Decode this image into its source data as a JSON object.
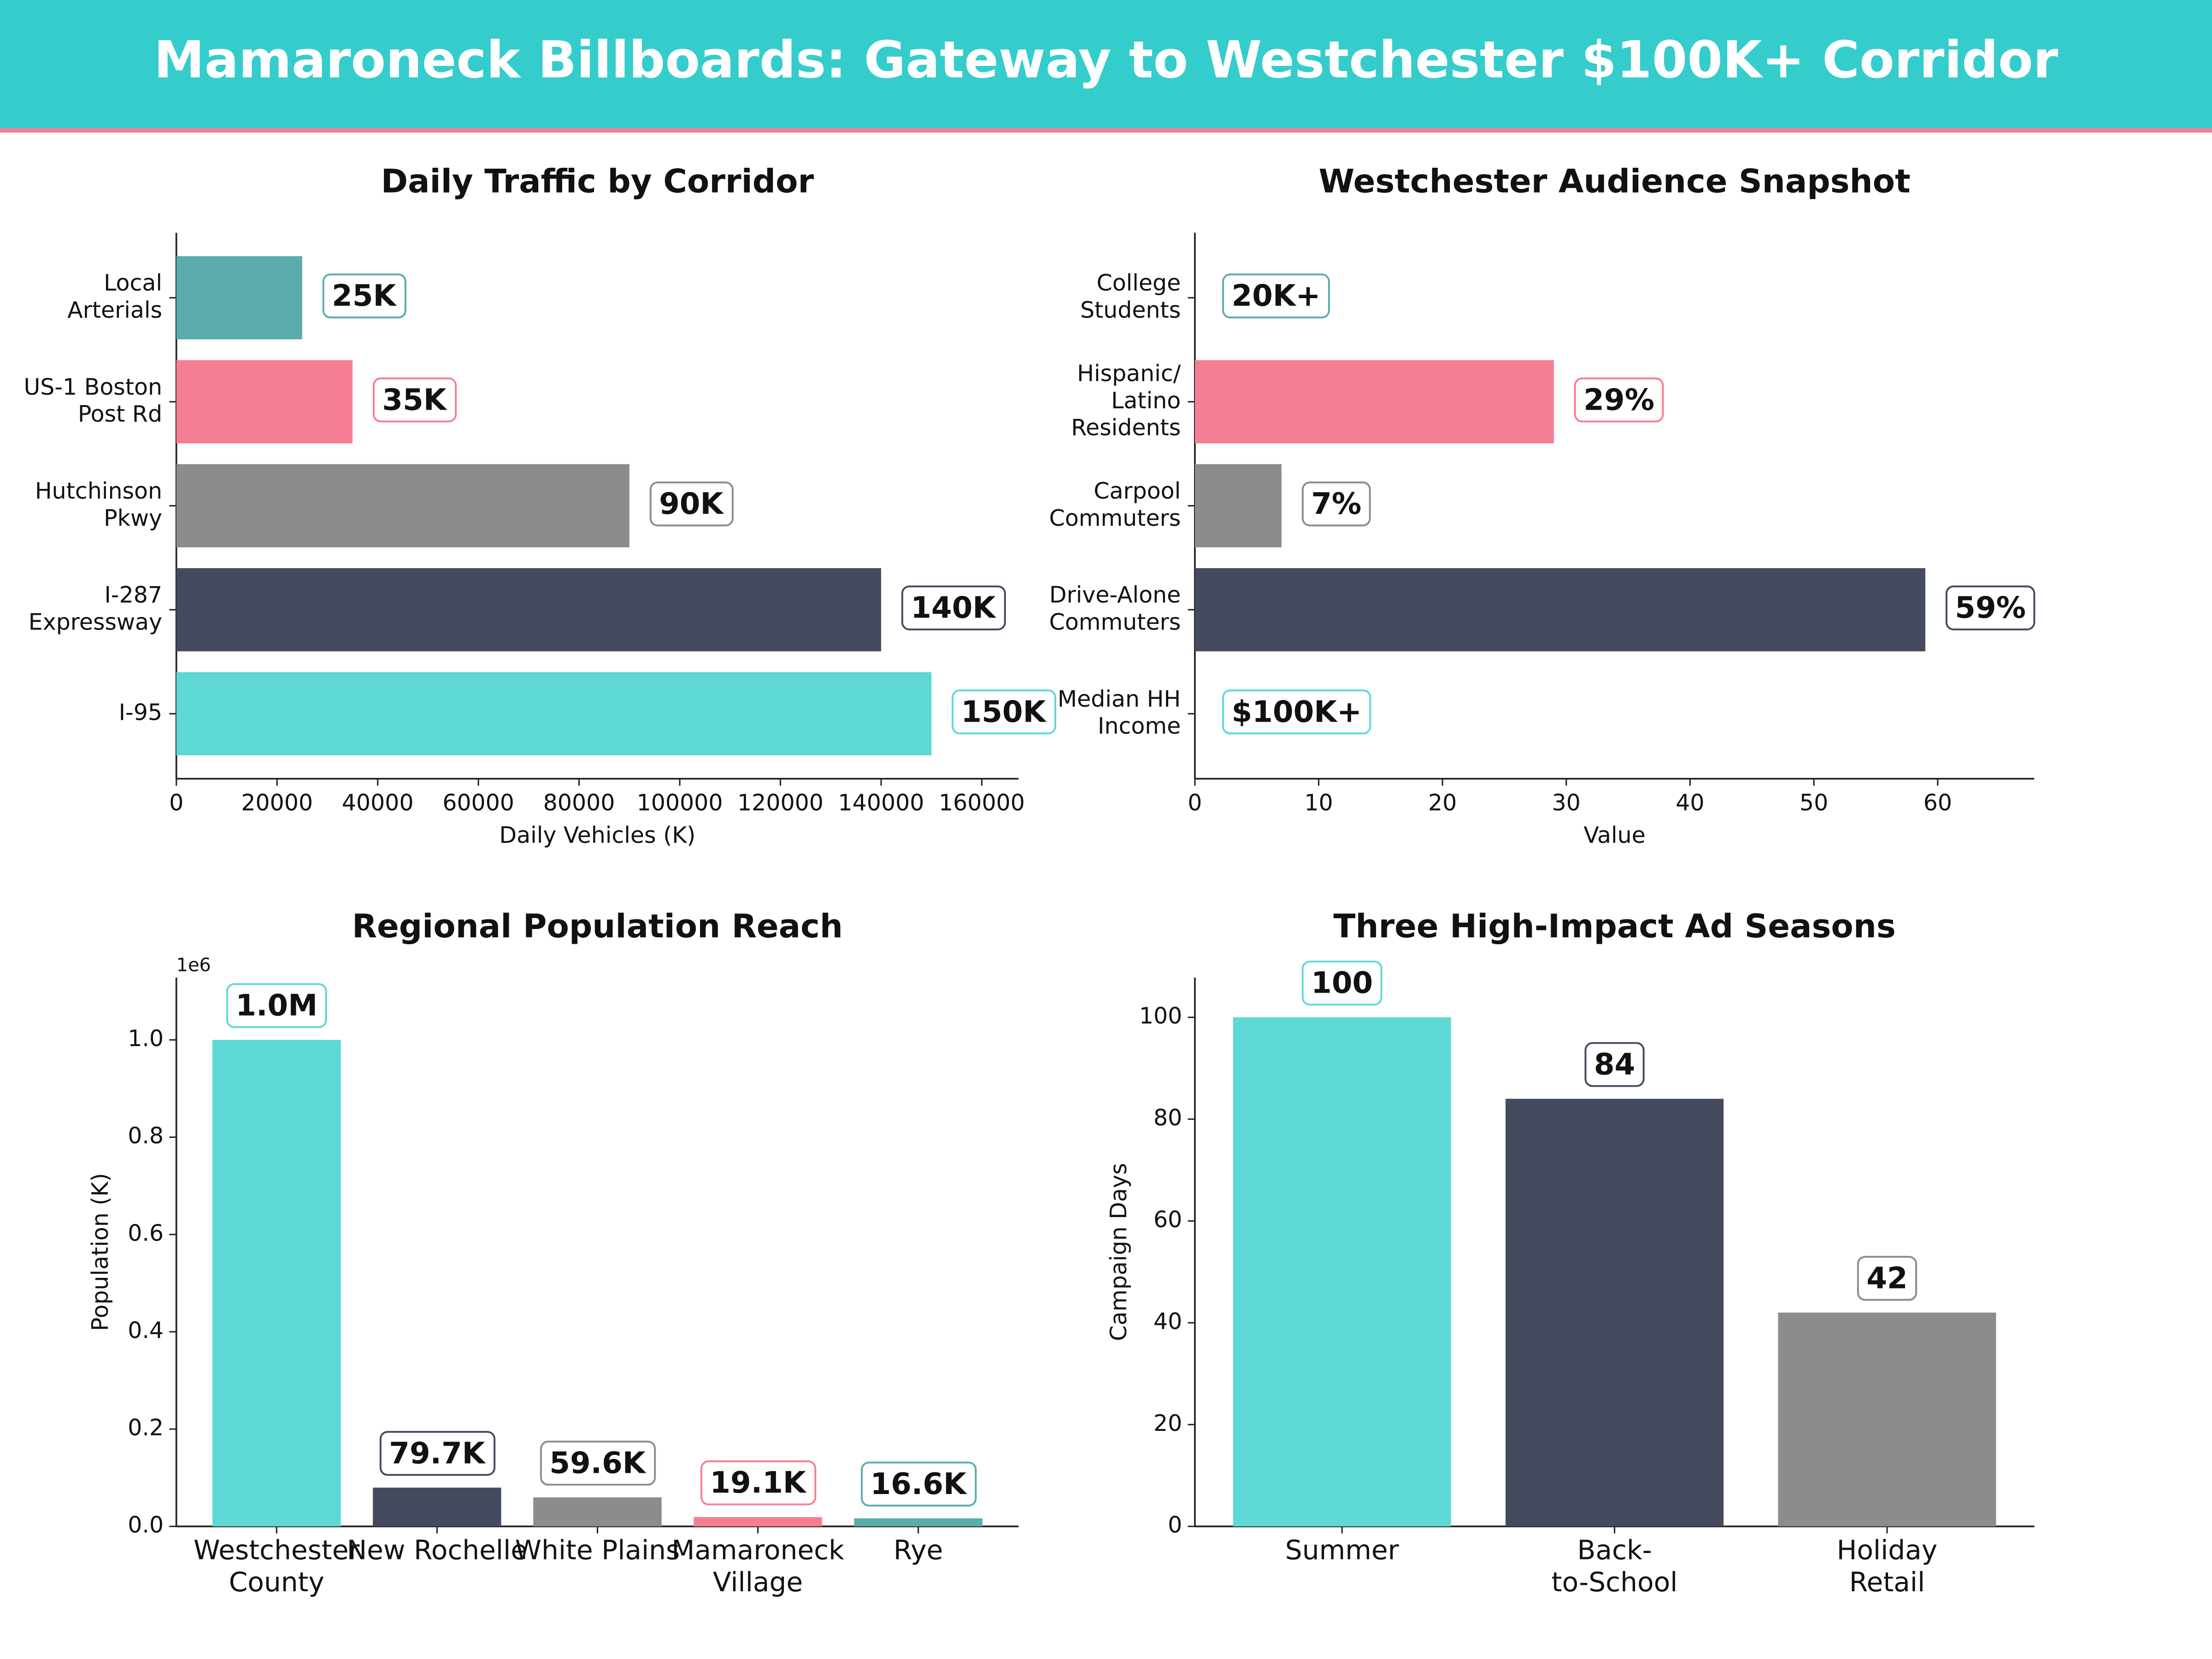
{
  "title": "Mamaroneck Billboards: Gateway to Westchester $100K+ Corridor",
  "chart_data": [
    {
      "type": "barh",
      "title": "Daily Traffic by Corridor",
      "xlabel": "Daily Vehicles (K)",
      "categories": [
        "Local\nArterials",
        "US-1 Boston\nPost Rd",
        "Hutchinson\nPkwy",
        "I-287\nExpressway",
        "I-95"
      ],
      "values": [
        25000,
        35000,
        90000,
        140000,
        150000
      ],
      "value_labels": [
        "25K",
        "35K",
        "90K",
        "140K",
        "150K"
      ],
      "colors": [
        "#5aacad",
        "#f67e92",
        "#8c8c8c",
        "#454a5e",
        "#5ed8d6"
      ],
      "xlim": [
        0,
        167300
      ],
      "xticks": [
        0,
        20000,
        40000,
        60000,
        80000,
        100000,
        120000,
        140000,
        160000
      ]
    },
    {
      "type": "barh",
      "title": "Westchester Audience Snapshot",
      "xlabel": "Value",
      "categories": [
        "College\nStudents",
        "Hispanic/\nLatino\nResidents",
        "Carpool\nCommuters",
        "Drive-Alone\nCommuters",
        "Median HH\nIncome"
      ],
      "values": [
        null,
        29,
        7,
        59,
        null
      ],
      "value_labels": [
        "20K+",
        "29%",
        "7%",
        "59%",
        "$100K+"
      ],
      "colors": [
        "#5aacad",
        "#f67e92",
        "#8c8c8c",
        "#454a5e",
        "#5ed8d6"
      ],
      "xlim": [
        0,
        67.8
      ],
      "xticks": [
        0,
        10,
        20,
        30,
        40,
        50,
        60
      ]
    },
    {
      "type": "bar",
      "title": "Regional Population Reach",
      "ylabel": "Population (K)",
      "y_offset_label": "1e6",
      "categories": [
        "Westchester\nCounty",
        "New Rochelle",
        "White Plains",
        "Mamaroneck\nVillage",
        "Rye"
      ],
      "values": [
        1000000,
        79700,
        59600,
        19100,
        16600
      ],
      "value_labels": [
        "1.0M",
        "79.7K",
        "59.6K",
        "19.1K",
        "16.6K"
      ],
      "colors": [
        "#5ed8d6",
        "#454a5e",
        "#8c8c8c",
        "#f67e92",
        "#5aacad"
      ],
      "ylim": [
        0,
        1128000
      ],
      "yticks": [
        {
          "value": 0,
          "label": "0.0"
        },
        {
          "value": 200000,
          "label": "0.2"
        },
        {
          "value": 400000,
          "label": "0.4"
        },
        {
          "value": 600000,
          "label": "0.6"
        },
        {
          "value": 800000,
          "label": "0.8"
        },
        {
          "value": 1000000,
          "label": "1.0"
        }
      ]
    },
    {
      "type": "bar",
      "title": "Three High-Impact Ad Seasons",
      "ylabel": "Campaign Days",
      "categories": [
        "Summer",
        "Back-\nto-School",
        "Holiday\nRetail"
      ],
      "values": [
        100,
        84,
        42
      ],
      "colors": [
        "#5ed8d6",
        "#454a5e",
        "#8c8c8c"
      ],
      "ylim": [
        0,
        107.8
      ],
      "yticks": [
        0,
        20,
        40,
        60,
        80,
        100
      ]
    }
  ]
}
